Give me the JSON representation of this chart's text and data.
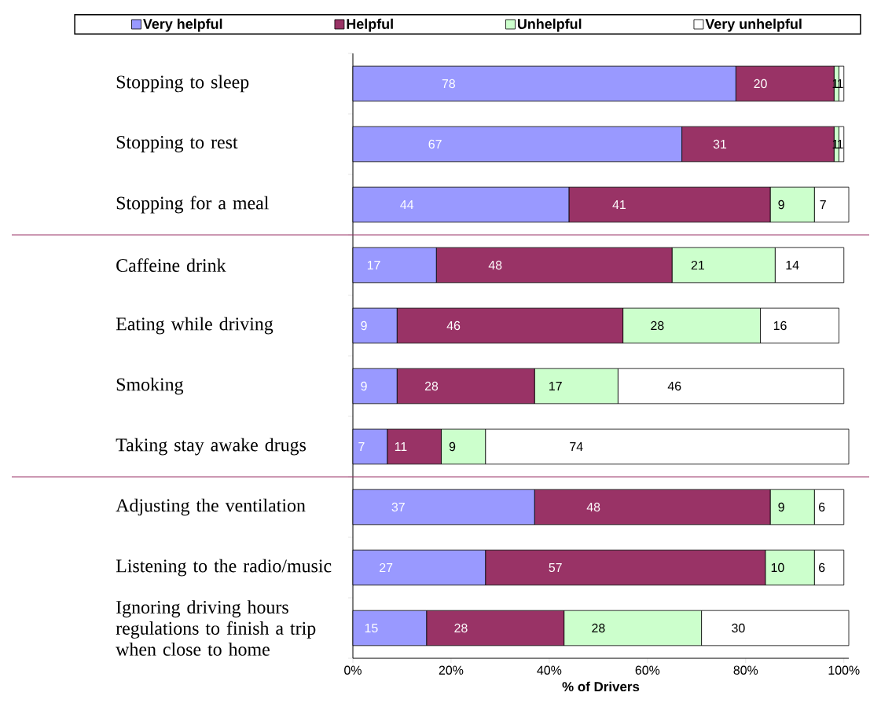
{
  "chart_data": {
    "type": "bar",
    "orientation": "horizontal",
    "stacked": true,
    "data_labels": true,
    "legend": "top",
    "xlabel": "% of Drivers",
    "categories": [
      "Stopping to sleep",
      "Stopping to rest",
      "Stopping for a meal",
      "Caffeine drink",
      "Eating while driving",
      "Smoking",
      "Taking stay awake drugs",
      "Adjusting the ventilation",
      "Listening to the radio/music",
      "Ignoring driving hours regulations to finish a trip when close to home"
    ],
    "series": [
      {
        "name": "Very helpful",
        "color": "#9999ff",
        "values": [
          78,
          67,
          44,
          17,
          9,
          9,
          7,
          37,
          27,
          15
        ]
      },
      {
        "name": "Helpful",
        "color": "#993366",
        "values": [
          20,
          31,
          41,
          48,
          46,
          28,
          11,
          48,
          57,
          28
        ]
      },
      {
        "name": "Unhelpful",
        "color": "#ccffcc",
        "values": [
          1,
          1,
          9,
          21,
          28,
          17,
          9,
          9,
          10,
          28
        ]
      },
      {
        "name": "Very unhelpful",
        "color": "#ffffff",
        "values": [
          1,
          1,
          7,
          14,
          16,
          46,
          74,
          6,
          6,
          30
        ]
      }
    ],
    "xlim": [
      0,
      101
    ],
    "xticks": [
      {
        "value": 0,
        "label": "0%"
      },
      {
        "value": 20,
        "label": "20%"
      },
      {
        "value": 40,
        "label": "40%"
      },
      {
        "value": 60,
        "label": "60%"
      },
      {
        "value": 80,
        "label": "80%"
      },
      {
        "value": 100,
        "label": "100%"
      }
    ]
  }
}
